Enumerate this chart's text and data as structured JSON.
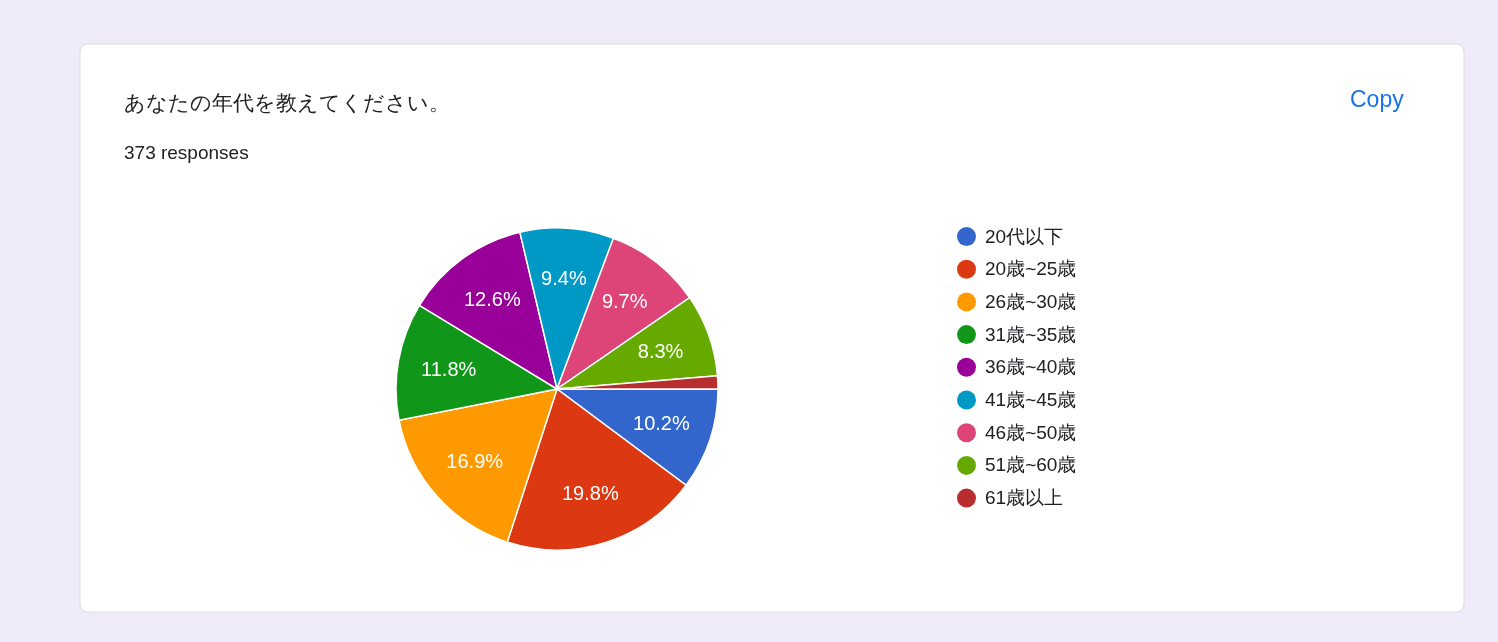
{
  "chart_data": {
    "type": "pie",
    "title": "あなたの年代を教えてください。",
    "subtitle": "373 responses",
    "categories": [
      "20代以下",
      "20歳~25歳",
      "26歳~30歳",
      "31歳~35歳",
      "36歳~40歳",
      "41歳~45歳",
      "46歳~50歳",
      "51歳~60歳",
      "61歳以上"
    ],
    "values": [
      10.2,
      19.8,
      16.9,
      11.8,
      12.6,
      9.4,
      9.7,
      8.3,
      1.3
    ],
    "colors": [
      "#3366cc",
      "#dc3912",
      "#ff9900",
      "#109618",
      "#990099",
      "#0099c6",
      "#dd4477",
      "#66aa00",
      "#b82e2e"
    ],
    "value_labels": [
      "10.2%",
      "19.8%",
      "16.9%",
      "11.8%",
      "12.6%",
      "9.4%",
      "9.7%",
      "8.3%",
      null
    ],
    "legend": "right",
    "annotations": [
      "Copy"
    ]
  }
}
